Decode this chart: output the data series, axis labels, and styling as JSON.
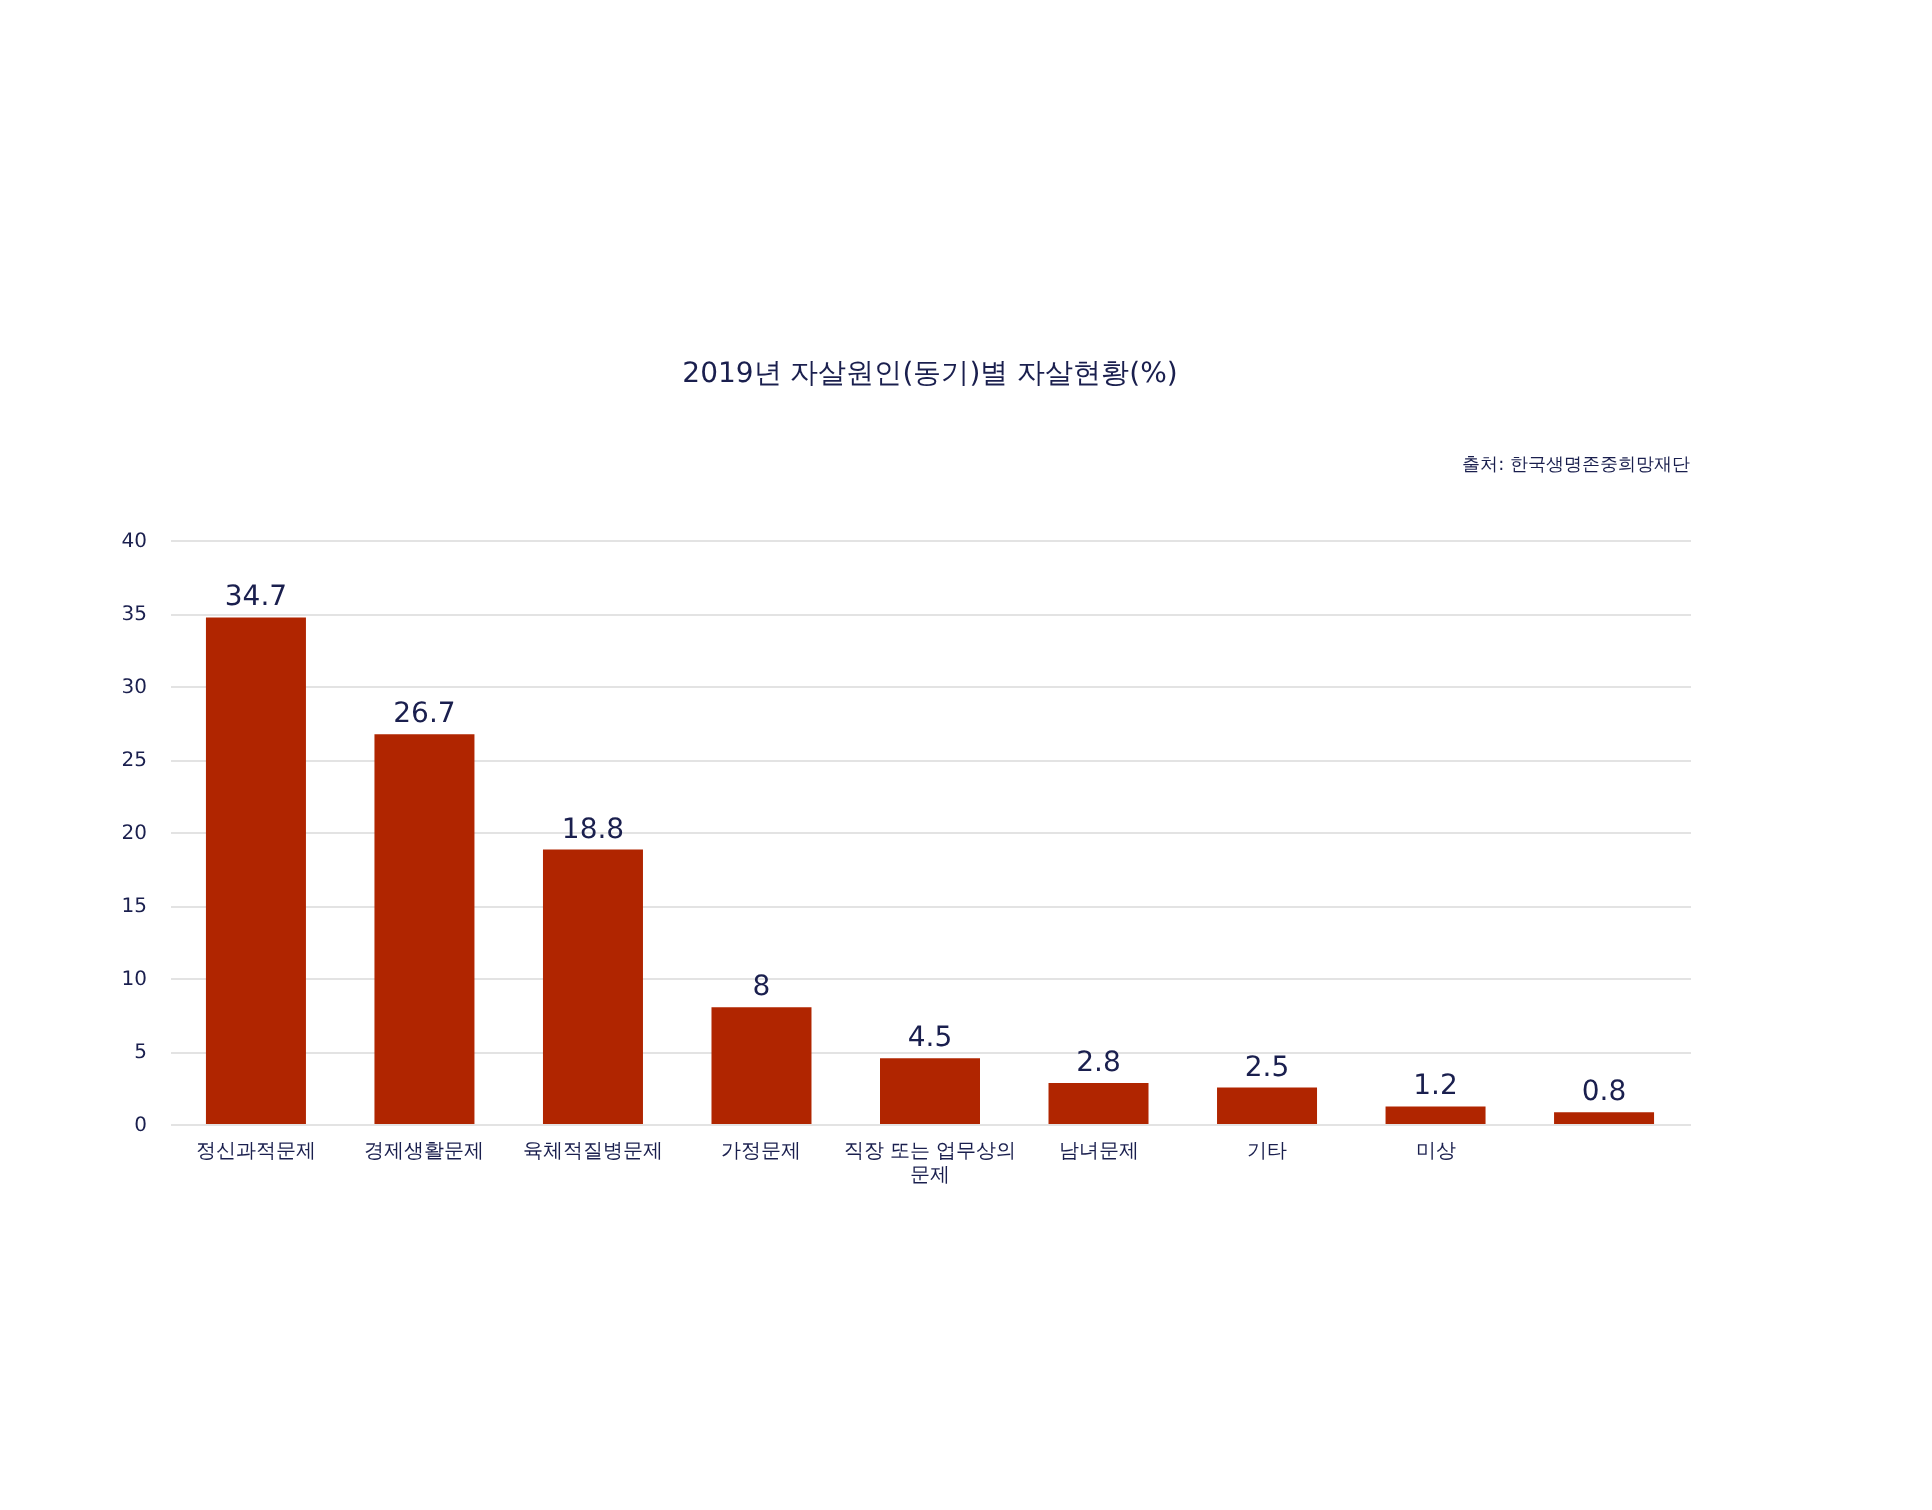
{
  "chart_data": {
    "type": "bar",
    "title": "2019년 자살원인(동기)별 자살현황(%)",
    "annotations": [
      "출처: 한국생명존중희망재단"
    ],
    "categories": [
      "정신과적문제",
      "경제생활문제",
      "육체적질병문제",
      "가정문제",
      "직장 또는 업무상의 문제",
      "남녀문제",
      "기타",
      "미상",
      null
    ],
    "values": [
      34.7,
      26.7,
      18.8,
      8,
      4.5,
      2.8,
      2.5,
      1.2,
      0.8
    ],
    "color": "#b02500",
    "ylim": [
      0,
      40
    ],
    "yticks": [
      0,
      5,
      10,
      15,
      20,
      25,
      30,
      35,
      40
    ],
    "grid": "y",
    "data_labels": true
  }
}
